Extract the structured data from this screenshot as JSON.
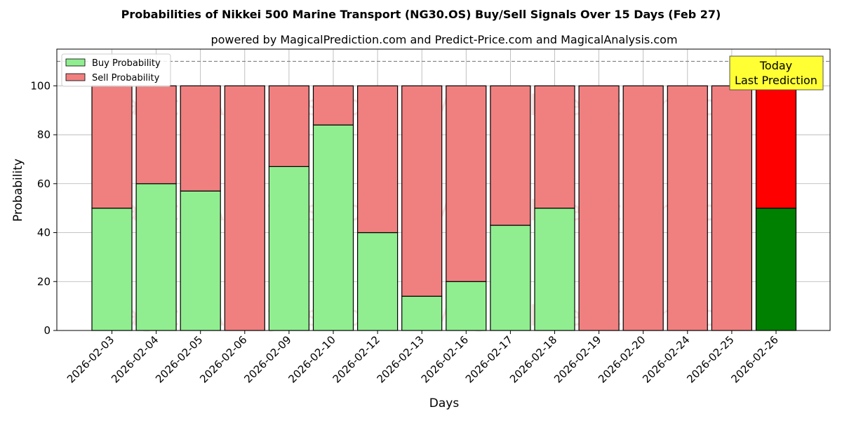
{
  "chart_data": {
    "type": "bar",
    "stacked": true,
    "title": "Probabilities of Nikkei 500 Marine Transport (NG30.OS) Buy/Sell Signals Over 15 Days (Feb 27)",
    "subtitle": "powered by MagicalPrediction.com and Predict-Price.com and MagicalAnalysis.com",
    "xlabel": "Days",
    "ylabel": "Probability",
    "ylim": [
      0,
      115
    ],
    "yticks": [
      0,
      20,
      40,
      60,
      80,
      100
    ],
    "grid": true,
    "legend_position": "top-left",
    "reference_line": 110,
    "categories": [
      "2026-02-03",
      "2026-02-04",
      "2026-02-05",
      "2026-02-06",
      "2026-02-09",
      "2026-02-10",
      "2026-02-12",
      "2026-02-13",
      "2026-02-16",
      "2026-02-17",
      "2026-02-18",
      "2026-02-19",
      "2026-02-20",
      "2026-02-24",
      "2026-02-25",
      "2026-02-26"
    ],
    "series": [
      {
        "name": "Buy Probability",
        "color": "#90ee90",
        "highlight_color": "#008000",
        "values": [
          50,
          60,
          57,
          0,
          67,
          84,
          40,
          14,
          20,
          43,
          50,
          0,
          0,
          0,
          0,
          50
        ]
      },
      {
        "name": "Sell Probability",
        "color": "#f08080",
        "highlight_color": "#ff0000",
        "values": [
          50,
          40,
          43,
          100,
          33,
          16,
          60,
          86,
          80,
          57,
          50,
          100,
          100,
          100,
          100,
          50
        ]
      }
    ],
    "highlight_index": 15,
    "annotation": {
      "lines": [
        "Today",
        "Last Prediction"
      ],
      "color": "#ffff33"
    },
    "watermarks": [
      "MagicalAnalysis.com",
      "MagicalPrediction.com"
    ]
  }
}
